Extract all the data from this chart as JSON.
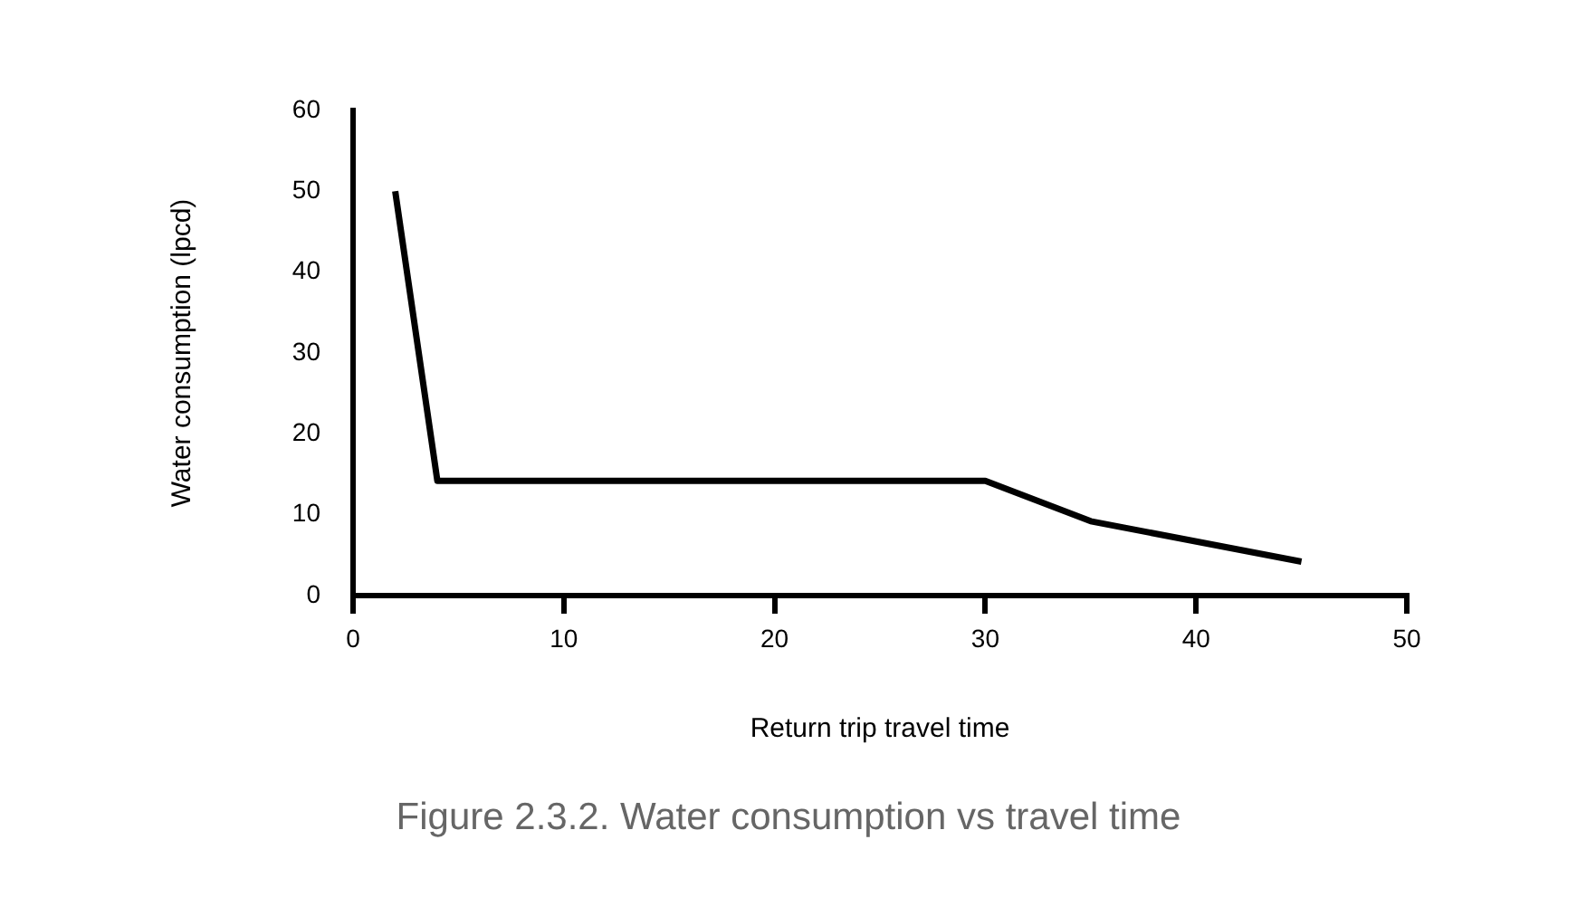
{
  "chart_data": {
    "type": "line",
    "xlabel": "Return trip travel time",
    "ylabel": "Water consumption (lpcd)",
    "x": [
      2,
      4,
      30,
      35,
      45
    ],
    "values": [
      50,
      14.2,
      14.2,
      9.2,
      4.2
    ],
    "color": "#000000",
    "xlim": [
      0,
      50
    ],
    "xticks": [
      0,
      10,
      20,
      30,
      40,
      50
    ],
    "ylim": [
      0,
      60
    ],
    "yticks": [
      0,
      10,
      20,
      30,
      40,
      50,
      60
    ],
    "grid": false,
    "legend": false,
    "marker": "none",
    "line_style": "solid",
    "annotations": [
      "Figure 2.3.2. Water consumption vs travel time"
    ]
  }
}
